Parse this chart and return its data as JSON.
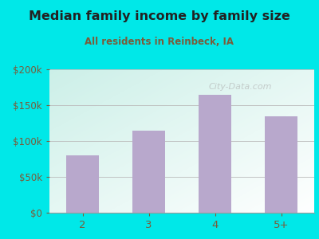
{
  "title": "Median family income by family size",
  "subtitle": "All residents in Reinbeck, IA",
  "categories": [
    "2",
    "3",
    "4",
    "5+"
  ],
  "values": [
    80000,
    115000,
    165000,
    135000
  ],
  "bar_color": "#b8a8cc",
  "title_color": "#222222",
  "subtitle_color": "#7a5c3a",
  "tick_color": "#7a5c3a",
  "background_color": "#00e8e8",
  "plot_bg_color1": "#ffffff",
  "plot_bg_color2": "#cef0e8",
  "ylim": [
    0,
    200000
  ],
  "yticks": [
    0,
    50000,
    100000,
    150000,
    200000
  ],
  "ytick_labels": [
    "$0",
    "$50k",
    "$100k",
    "$150k",
    "$200k"
  ],
  "watermark": "City-Data.com",
  "figsize": [
    4.0,
    3.0
  ],
  "dpi": 100
}
